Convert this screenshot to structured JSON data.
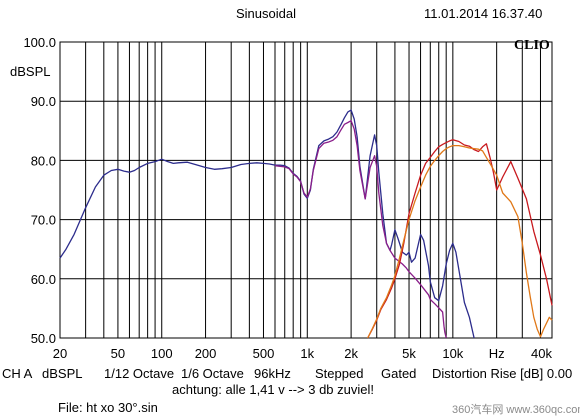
{
  "header": {
    "mode": "Sinusoidal",
    "timestamp": "11.01.2014 16.37.40",
    "brand": "CLIO"
  },
  "footer": {
    "settings": [
      "CH A",
      "dBSPL",
      "1/12 Octave",
      "1/6 Octave",
      "96kHz",
      "Stepped",
      "Gated",
      "Distortion Rise [dB] 0.00"
    ],
    "note": "achtung: alle 1,41 v --> 3 db zuviel!",
    "file": "File: ht xo 30°.sin"
  },
  "watermark": "360汽车网 www.360qc.com",
  "chart_data": {
    "type": "line",
    "title": "",
    "ylabel": "dBSPL",
    "xlabel": "",
    "x_scale": "log",
    "xlim": [
      20,
      48000
    ],
    "ylim": [
      50,
      100
    ],
    "y_ticks": [
      "100.0",
      "90.0",
      "80.0",
      "70.0",
      "60.0",
      "50.0"
    ],
    "y_tick_values": [
      100,
      90,
      80,
      70,
      60,
      50
    ],
    "x_tick_labels": [
      "20",
      "50",
      "100",
      "200",
      "500",
      "1k",
      "2k",
      "5k",
      "10k",
      "Hz",
      "40k"
    ],
    "x_tick_values": [
      20,
      50,
      100,
      200,
      500,
      1000,
      2000,
      5000,
      10000,
      20000,
      40000
    ],
    "grid": true,
    "series": [
      {
        "color": "#2c2c8c",
        "x": [
          20,
          22,
          25,
          30,
          35,
          40,
          45,
          50,
          55,
          60,
          65,
          70,
          80,
          90,
          100,
          110,
          120,
          130,
          150,
          170,
          200,
          230,
          260,
          300,
          350,
          400,
          450,
          500,
          550,
          600,
          650,
          700,
          750,
          800,
          850,
          900,
          950,
          1000,
          1050,
          1100,
          1200,
          1300,
          1400,
          1500,
          1600,
          1700,
          1800,
          1900,
          2000,
          2100,
          2200,
          2300,
          2500,
          2700,
          2900,
          3000,
          3100,
          3300,
          3500,
          3700,
          3800,
          4000,
          4200,
          4500,
          4800,
          5000,
          5200,
          5500,
          6000,
          6300,
          6800,
          7000,
          7500,
          8000,
          8500,
          9000,
          9500,
          10000,
          10500,
          11000,
          12000,
          13000,
          14000
        ],
        "y": [
          63.5,
          65,
          67.5,
          72,
          75.5,
          77.5,
          78.3,
          78.5,
          78.2,
          78,
          78.3,
          78.8,
          79.5,
          79.8,
          80.2,
          79.8,
          79.5,
          79.6,
          79.7,
          79.3,
          78.8,
          78.5,
          78.6,
          78.8,
          79.3,
          79.5,
          79.6,
          79.5,
          79.4,
          79.2,
          79.2,
          79.1,
          78.7,
          77.8,
          77.3,
          76.5,
          74.3,
          73.6,
          75,
          78.5,
          82.5,
          83.3,
          83.6,
          84,
          84.8,
          86,
          87.2,
          88.2,
          88.5,
          87,
          84,
          79,
          73.5,
          80.8,
          84.3,
          82.5,
          78,
          71,
          66,
          64.8,
          65.8,
          68.3,
          66.8,
          64.5,
          64,
          64.5,
          62.8,
          63.5,
          67.5,
          66.5,
          62.2,
          59.5,
          56.8,
          56.3,
          58.8,
          62.5,
          64.8,
          66,
          64.5,
          61.5,
          56,
          53.5,
          50
        ]
      },
      {
        "color": "#8a1e8a",
        "x": [
          600,
          650,
          700,
          750,
          800,
          850,
          900,
          950,
          1000,
          1050,
          1100,
          1200,
          1300,
          1400,
          1500,
          1600,
          1700,
          1800,
          1900,
          2000,
          2100,
          2200,
          2300,
          2500,
          2700,
          2900,
          3000,
          3100,
          3300,
          3500,
          3700,
          4000,
          4500,
          4800,
          5000,
          5500,
          6000,
          6800,
          7000,
          7500,
          8000,
          8500,
          8700,
          8800,
          9000
        ],
        "y": [
          79.1,
          79,
          78.9,
          78.6,
          77.7,
          77.2,
          76.4,
          74.5,
          73.8,
          75.2,
          78.3,
          82,
          82.9,
          83.1,
          83.4,
          84,
          85.1,
          86.1,
          86.4,
          86.7,
          85.3,
          82.5,
          78.3,
          73.5,
          78.8,
          80.8,
          79,
          74.5,
          69,
          66,
          64.8,
          63.5,
          62.5,
          61.8,
          61.2,
          60.1,
          59,
          57.3,
          56.5,
          55.8,
          55.1,
          54.4,
          52,
          51,
          50
        ]
      },
      {
        "color": "#c8191e",
        "x": [
          2600,
          2800,
          3000,
          3200,
          3500,
          3800,
          4000,
          4300,
          4600,
          5000,
          5500,
          6000,
          6500,
          7000,
          7500,
          8000,
          8500,
          9000,
          9500,
          10000,
          11000,
          12000,
          13000,
          14000,
          15000,
          16000,
          17000,
          18000,
          19000,
          20000,
          22000,
          25000,
          28000,
          32000,
          36000,
          40000,
          44000,
          48000
        ],
        "y": [
          50,
          51.5,
          53,
          54.8,
          56.5,
          58.5,
          60,
          62.5,
          66,
          71,
          74.5,
          77.5,
          79.5,
          80.5,
          81.5,
          82.3,
          82.7,
          83,
          83.3,
          83.5,
          83.2,
          82.6,
          82.4,
          81.8,
          81.5,
          82.3,
          82.8,
          80.5,
          78,
          75,
          77.2,
          79.8,
          77,
          73.5,
          68,
          64,
          60,
          55.5
        ]
      },
      {
        "color": "#e07818",
        "x": [
          2600,
          2800,
          3000,
          3200,
          3500,
          3800,
          4000,
          4300,
          4600,
          5000,
          5500,
          6000,
          6500,
          7000,
          7500,
          8000,
          8500,
          9000,
          9500,
          10000,
          11000,
          12000,
          13000,
          14000,
          15000,
          16000,
          17000,
          18000,
          20000,
          22000,
          25000,
          28000,
          30000,
          32000,
          34000,
          36000,
          38000,
          40000,
          42000,
          44000,
          46000,
          48000
        ],
        "y": [
          50,
          51.6,
          53.2,
          55,
          56.8,
          59,
          60.5,
          63.5,
          66.5,
          70,
          73.2,
          75.5,
          77.5,
          79,
          80,
          80.8,
          81.5,
          82,
          82.3,
          82.5,
          82.5,
          82.3,
          82.1,
          82,
          81.9,
          81.6,
          80.5,
          79.5,
          77.5,
          74.5,
          73,
          70.5,
          66,
          61,
          57,
          53.5,
          51.5,
          50.2,
          51.5,
          52.5,
          53.5,
          53
        ]
      }
    ]
  }
}
